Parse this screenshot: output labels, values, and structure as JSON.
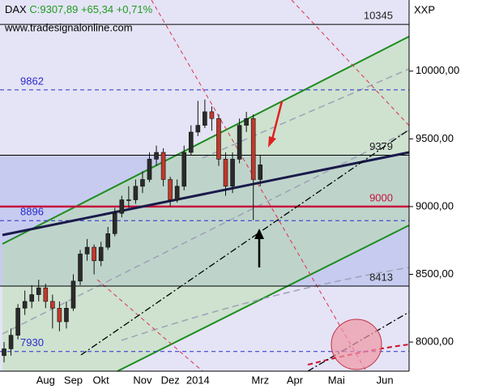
{
  "chart_data": {
    "type": "candlestick",
    "title": "DAX",
    "quote": "C:9307,89 +65,34 +0,71%",
    "quote_color": "#1e9a1e",
    "watermark": "www.tradesignalonline.com",
    "axis_label": "XXP",
    "categories": [
      null,
      null,
      null,
      null,
      null,
      null,
      "Aug",
      null,
      null,
      null,
      "Sep",
      null,
      null,
      null,
      "Okt",
      null,
      null,
      null,
      null,
      null,
      "Nov",
      null,
      null,
      null,
      "Dez",
      null,
      null,
      null,
      "2014",
      null,
      null,
      null,
      null,
      null,
      null,
      null,
      null,
      "Mrz",
      null,
      null,
      null,
      null,
      "Apr",
      null,
      null,
      null,
      null,
      null,
      "Mai",
      null,
      null,
      null,
      null,
      null,
      null,
      "Jun",
      null,
      null,
      null
    ],
    "open": [
      7900,
      7950,
      8050,
      8250,
      8300,
      8350,
      8400,
      8300,
      8250,
      8150,
      8250,
      8450,
      8650,
      8700,
      8600,
      8700,
      8800,
      8950,
      9050,
      9050,
      9150,
      9200,
      9350,
      9400,
      9200,
      9050,
      9150,
      9400,
      9550,
      9600,
      9700,
      9650,
      9350,
      9150,
      9350,
      9600,
      9650,
      9200,
      null,
      null,
      null,
      null,
      null,
      null,
      null,
      null,
      null,
      null,
      null,
      null,
      null,
      null,
      null,
      null,
      null,
      null,
      null,
      null,
      null
    ],
    "high": [
      8000,
      8100,
      8280,
      8380,
      8420,
      8460,
      8430,
      8350,
      8300,
      8300,
      8500,
      8680,
      8760,
      8720,
      8740,
      8850,
      8990,
      9080,
      9150,
      9200,
      9260,
      9400,
      9450,
      9430,
      9220,
      9200,
      9450,
      9600,
      9780,
      9790,
      9740,
      9680,
      9400,
      9400,
      9650,
      9700,
      9680,
      9380,
      null,
      null,
      null,
      null,
      null,
      null,
      null,
      null,
      null,
      null,
      null,
      null,
      null,
      null,
      null,
      null,
      null,
      null,
      null,
      null,
      null
    ],
    "low": [
      7850,
      7900,
      8020,
      8200,
      8250,
      8300,
      8250,
      8100,
      8080,
      8100,
      8230,
      8420,
      8600,
      8500,
      8560,
      8680,
      8780,
      8920,
      8990,
      9020,
      9100,
      9180,
      9300,
      9150,
      9000,
      9030,
      9120,
      9380,
      9520,
      9580,
      9560,
      9300,
      9080,
      9100,
      9320,
      9550,
      8900,
      9150,
      null,
      null,
      null,
      null,
      null,
      null,
      null,
      null,
      null,
      null,
      null,
      null,
      null,
      null,
      null,
      null,
      null,
      null,
      null,
      null,
      null
    ],
    "close": [
      7950,
      8050,
      8250,
      8300,
      8350,
      8400,
      8300,
      8250,
      8150,
      8250,
      8450,
      8650,
      8700,
      8600,
      8700,
      8800,
      8950,
      9050,
      9050,
      9150,
      9200,
      9350,
      9400,
      9200,
      9050,
      9150,
      9400,
      9550,
      9600,
      9700,
      9650,
      9350,
      9150,
      9350,
      9600,
      9650,
      9200,
      9307.89,
      null,
      null,
      null,
      null,
      null,
      null,
      null,
      null,
      null,
      null,
      null,
      null,
      null,
      null,
      null,
      null,
      null,
      null,
      null,
      null,
      null
    ],
    "up_color": "#2b2b2b",
    "down_color": "#c0392b",
    "ylim": [
      7785,
      10525
    ],
    "yticks": [
      {
        "value": 8000,
        "label": "8000,00"
      },
      {
        "value": 8500,
        "label": "8500,00"
      },
      {
        "value": 9000,
        "label": "9000,00"
      },
      {
        "value": 9500,
        "label": "9500,00"
      },
      {
        "value": 10000,
        "label": "10000,00"
      }
    ],
    "levels": [
      {
        "value": 10345,
        "color": "#000000",
        "dash": false,
        "label_side": "right"
      },
      {
        "value": 9862,
        "color": "#2a2acc",
        "dash": true,
        "label_side": "left"
      },
      {
        "value": 9379,
        "color": "#000000",
        "dash": false,
        "label_side": "right"
      },
      {
        "value": 9000,
        "color": "#c8103c",
        "dash": false,
        "label_side": "right"
      },
      {
        "value": 8896,
        "color": "#2a2acc",
        "dash": true,
        "label_side": "left"
      },
      {
        "value": 8413,
        "color": "#000000",
        "dash": false,
        "label_side": "right"
      },
      {
        "value": 7930,
        "color": "#2a2acc",
        "dash": true,
        "label_side": "left"
      }
    ],
    "zones": [
      {
        "from": 8413,
        "to": 9379,
        "color": "#c6cbef"
      }
    ],
    "background": "#e4e4f6"
  }
}
